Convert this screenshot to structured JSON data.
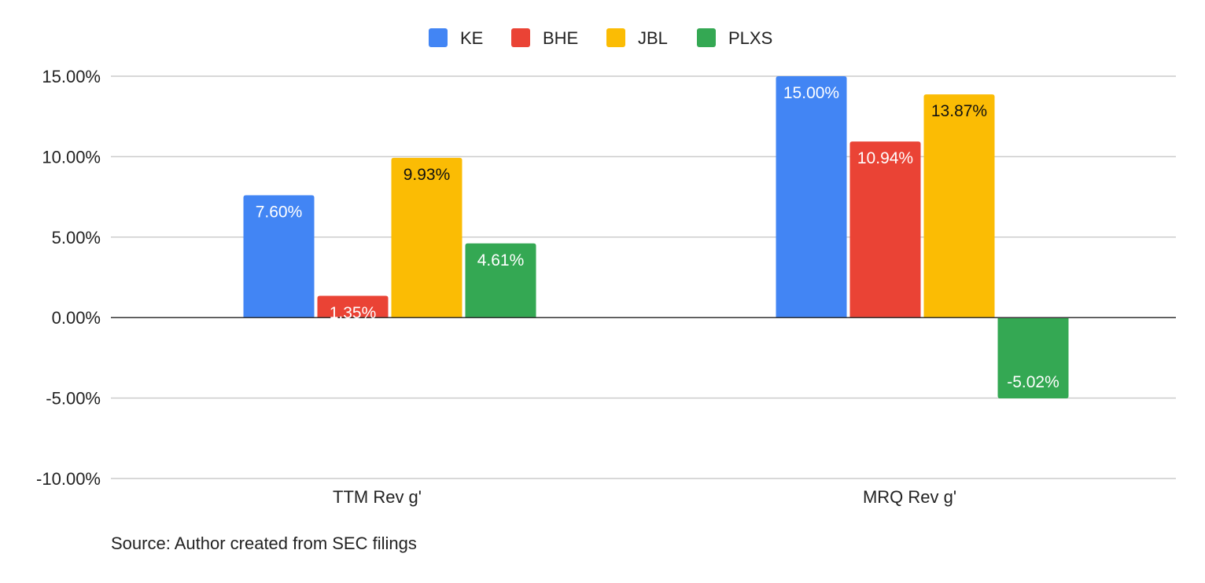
{
  "chart_data": {
    "type": "bar",
    "categories": [
      "TTM Rev g'",
      "MRQ Rev g'"
    ],
    "series": [
      {
        "name": "KE",
        "color": "#4285F4",
        "label_color": "#ffffff",
        "values": [
          7.6,
          15.0
        ],
        "labels": [
          "7.60%",
          "15.00%"
        ]
      },
      {
        "name": "BHE",
        "color": "#EA4335",
        "label_color": "#ffffff",
        "values": [
          1.35,
          10.94
        ],
        "labels": [
          "1.35%",
          "10.94%"
        ]
      },
      {
        "name": "JBL",
        "color": "#FBBC04",
        "label_color": "#111111",
        "values": [
          9.93,
          13.87
        ],
        "labels": [
          "9.93%",
          "13.87%"
        ]
      },
      {
        "name": "PLXS",
        "color": "#34A853",
        "label_color": "#ffffff",
        "values": [
          4.61,
          -5.02
        ],
        "labels": [
          "4.61%",
          "-5.02%"
        ]
      }
    ],
    "ylim": [
      -10,
      15
    ],
    "yticks": [
      15,
      10,
      5,
      0,
      -5,
      -10
    ],
    "ytick_labels": [
      "15.00%",
      "10.00%",
      "5.00%",
      "0.00%",
      "-5.00%",
      "-10.00%"
    ],
    "grid": true,
    "legend_position": "top-center",
    "xlabel": "",
    "ylabel": "",
    "title": ""
  },
  "footer": {
    "source": "Source: Author created from SEC filings"
  }
}
